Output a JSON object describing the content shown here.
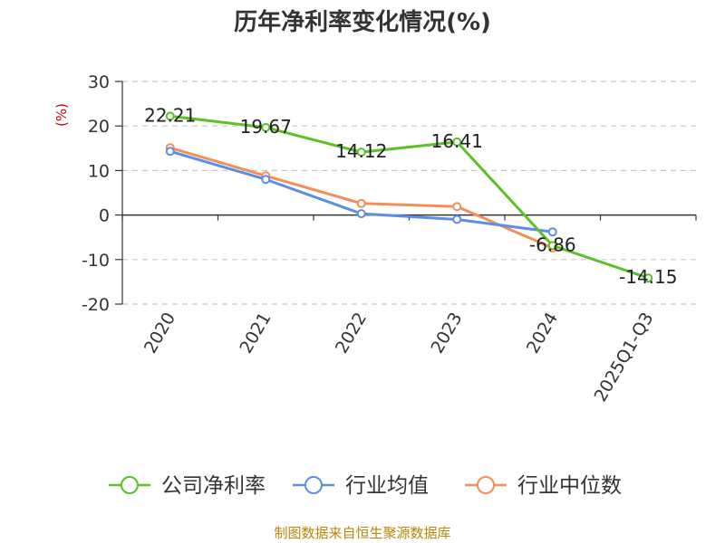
{
  "chart_data": {
    "type": "line",
    "title": "历年净利率变化情况(%)",
    "ylabel": "(%)",
    "categories": [
      "2020",
      "2021",
      "2022",
      "2023",
      "2024",
      "2025Q1-Q3"
    ],
    "ylim": [
      -20,
      30
    ],
    "yticks": [
      30,
      20,
      10,
      0,
      -10,
      -20
    ],
    "grid": true,
    "legend_position": "bottom",
    "series": [
      {
        "name": "公司净利率",
        "color": "#5cc126",
        "values": [
          22.21,
          19.67,
          14.12,
          16.41,
          -6.86,
          -14.15
        ],
        "labels": [
          "22.21",
          "19.67",
          "14.12",
          "16.41",
          "-6.86",
          "-14.15"
        ]
      },
      {
        "name": "行业均值",
        "color": "#5b8ee6",
        "values": [
          14.3,
          8.0,
          0.3,
          -1.0,
          -3.8,
          null
        ]
      },
      {
        "name": "行业中位数",
        "color": "#f28e57",
        "values": [
          15.1,
          8.8,
          2.6,
          1.9,
          -7.4,
          null
        ]
      }
    ]
  },
  "source": "制图数据来自恒生聚源数据库"
}
